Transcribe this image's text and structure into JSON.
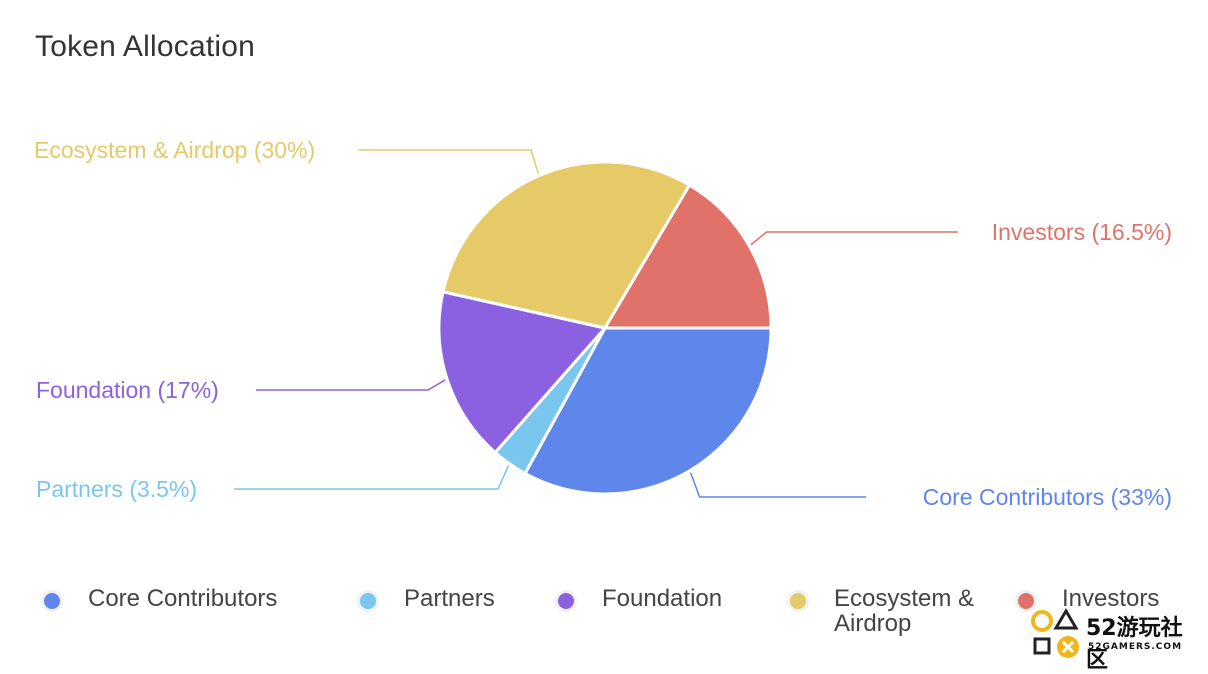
{
  "title": "Token Allocation",
  "chart_data": {
    "type": "pie",
    "title": "Token Allocation",
    "series": [
      {
        "name": "Core Contributors",
        "value": 33,
        "color": "#5f86ea",
        "label": "Core Contributors (33%)"
      },
      {
        "name": "Partners",
        "value": 3.5,
        "color": "#79c7ee",
        "label": "Partners (3.5%)"
      },
      {
        "name": "Foundation",
        "value": 17,
        "color": "#8b61e2",
        "label": "Foundation (17%)"
      },
      {
        "name": "Ecosystem & Airdrop",
        "value": 30,
        "color": "#e6ca68",
        "label": "Ecosystem & Airdrop (30%)"
      },
      {
        "name": "Investors",
        "value": 16.5,
        "color": "#e0726a",
        "label": "Investors (16.5%)"
      }
    ],
    "legend_placement": "bottom",
    "legend": [
      {
        "label": "Core Contributors",
        "color": "#5f86ea"
      },
      {
        "label": "Partners",
        "color": "#79c7ee"
      },
      {
        "label": "Foundation",
        "color": "#8b61e2"
      },
      {
        "label": "Ecosystem & Airdrop",
        "color": "#e6ca68"
      },
      {
        "label": "Investors",
        "color": "#e0726a"
      }
    ]
  },
  "watermark": {
    "text": "52游玩社区",
    "sub": "52GAMERS.COM"
  }
}
